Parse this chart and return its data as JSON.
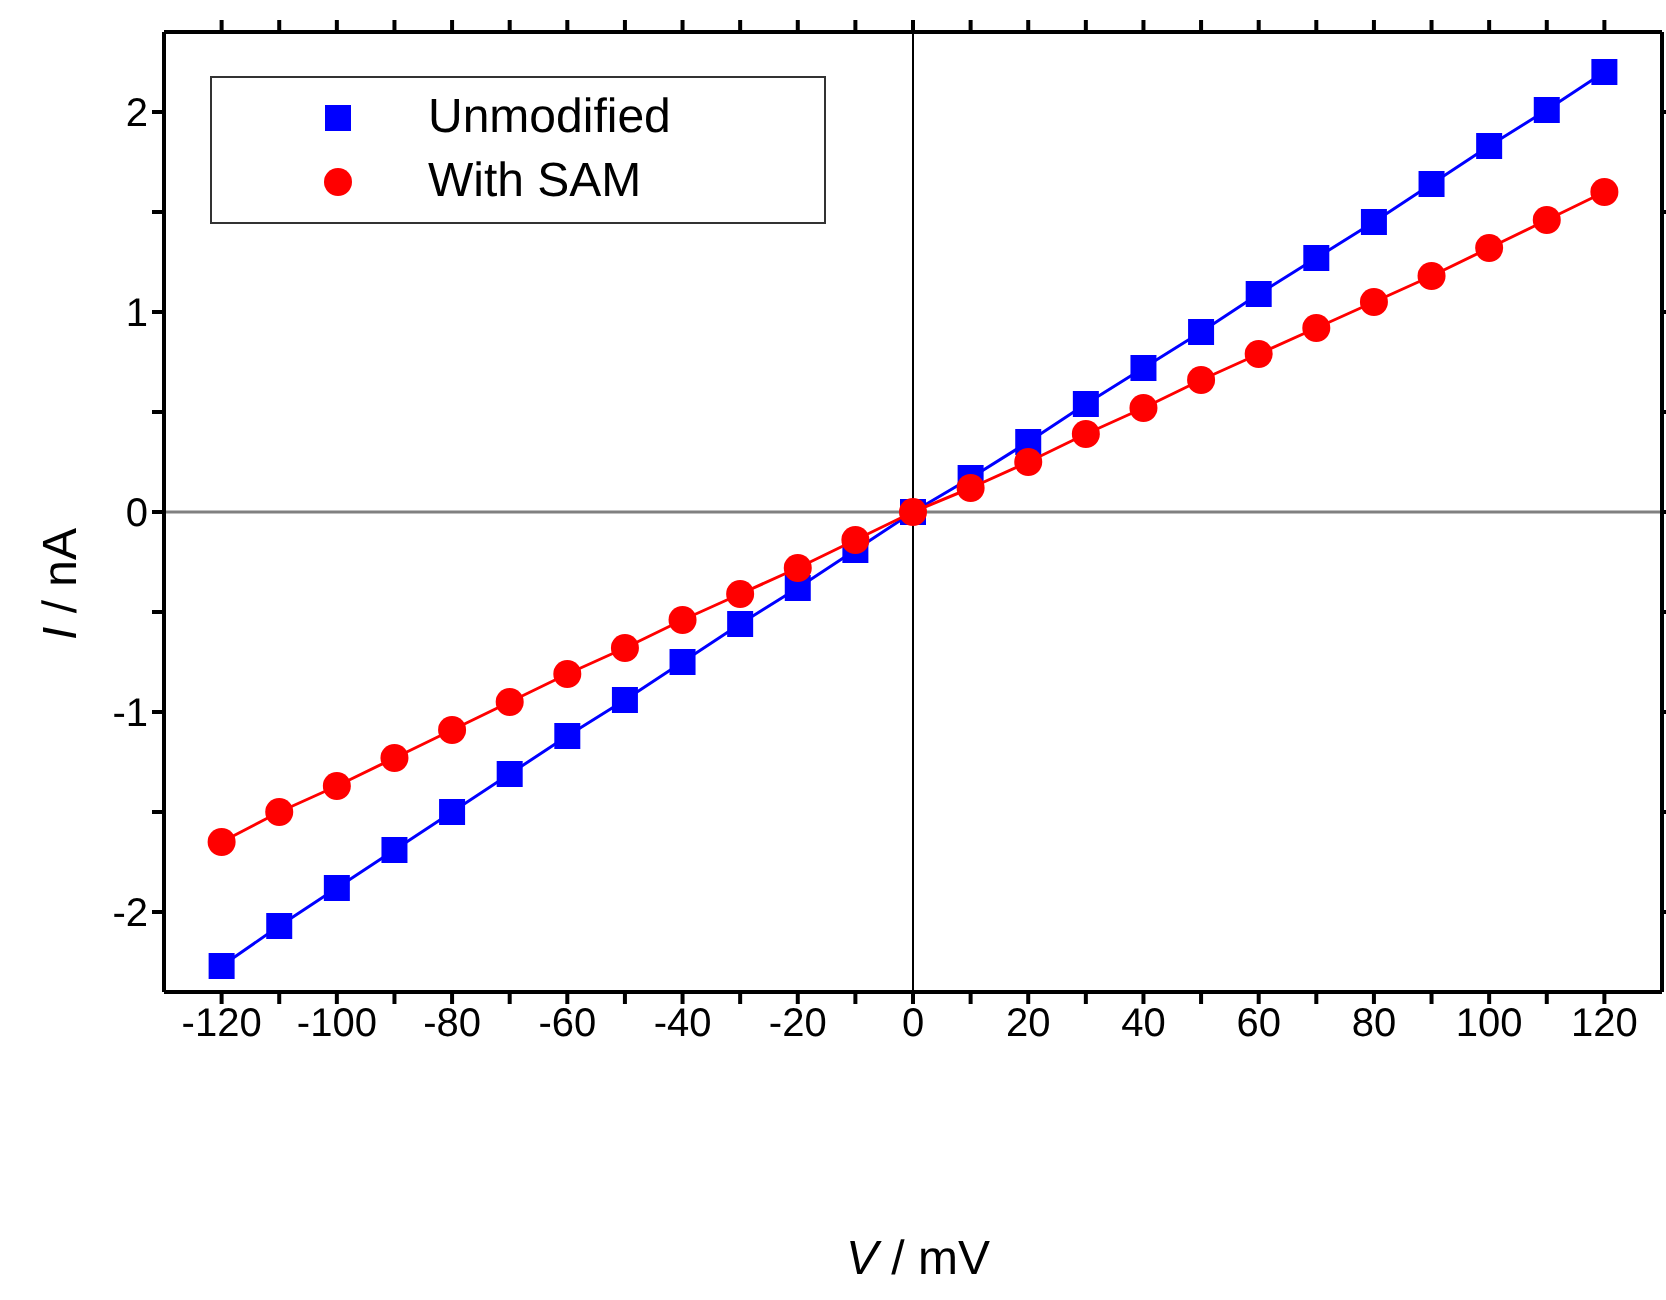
{
  "chart_data": {
    "type": "line",
    "line_style": "solid",
    "xlabel": "V / mV",
    "ylabel": "I / nA",
    "xlim": [
      -130,
      130
    ],
    "ylim": [
      -2.4,
      2.4
    ],
    "xticks": [
      -120,
      {
        "value": -110,
        "label": null
      },
      -100,
      {
        "value": -90,
        "label": null
      },
      -80,
      {
        "value": -70,
        "label": null
      },
      -60,
      {
        "value": -50,
        "label": null
      },
      -40,
      {
        "value": -30,
        "label": null
      },
      -20,
      {
        "value": -10,
        "label": null
      },
      0,
      {
        "value": 10,
        "label": null
      },
      20,
      {
        "value": 30,
        "label": null
      },
      40,
      {
        "value": 50,
        "label": null
      },
      60,
      {
        "value": 70,
        "label": null
      },
      80,
      {
        "value": 90,
        "label": null
      },
      100,
      {
        "value": 110,
        "label": null
      },
      120
    ],
    "yticks": [
      -2,
      {
        "value": -1.5,
        "label": null
      },
      -1,
      {
        "value": -0.5,
        "label": null
      },
      0,
      {
        "value": 0.5,
        "label": null
      },
      1,
      {
        "value": 1.5,
        "label": null
      },
      2
    ],
    "x": [
      -120,
      -110,
      -100,
      -90,
      -80,
      -70,
      -60,
      -50,
      -40,
      -30,
      -20,
      -10,
      0,
      10,
      20,
      30,
      40,
      50,
      60,
      70,
      80,
      90,
      100,
      110,
      120
    ],
    "series": [
      {
        "name": "Unmodified",
        "color": "#0000ff",
        "marker": "square",
        "values": [
          -2.27,
          -2.07,
          -1.88,
          -1.69,
          -1.5,
          -1.31,
          -1.12,
          -0.94,
          -0.75,
          -0.56,
          -0.38,
          -0.19,
          0,
          0.17,
          0.35,
          0.54,
          0.72,
          0.9,
          1.09,
          1.27,
          1.45,
          1.64,
          1.83,
          2.01,
          2.2
        ]
      },
      {
        "name": "With SAM",
        "color": "#ff0000",
        "marker": "circle",
        "values": [
          -1.65,
          -1.5,
          -1.37,
          -1.23,
          -1.09,
          -0.95,
          -0.81,
          -0.68,
          -0.54,
          -0.41,
          -0.28,
          -0.14,
          0,
          0.12,
          0.25,
          0.39,
          0.52,
          0.66,
          0.79,
          0.92,
          1.05,
          1.18,
          1.32,
          1.46,
          1.6
        ]
      }
    ],
    "ref_lines": [
      {
        "axis": "x",
        "value": 0,
        "color": "#000000"
      },
      {
        "axis": "y",
        "value": 0,
        "color": "#808080"
      }
    ],
    "legend": "top left"
  }
}
